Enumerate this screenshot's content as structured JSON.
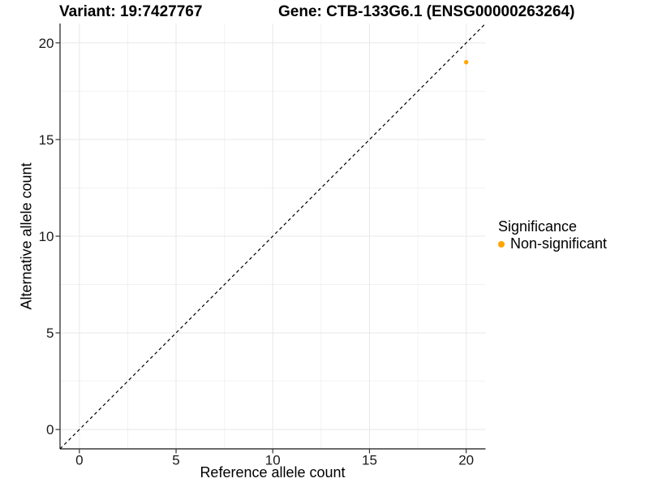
{
  "header": {
    "variant_title": "Variant: 19:7427767",
    "gene_title": "Gene: CTB-133G6.1 (ENSG00000263264)"
  },
  "chart_data": {
    "type": "scatter",
    "xlabel": "Reference allele count",
    "ylabel": "Alternative allele count",
    "xlim": [
      -1,
      21
    ],
    "ylim": [
      -1,
      21
    ],
    "x_ticks": [
      0,
      5,
      10,
      15,
      20
    ],
    "y_ticks": [
      0,
      5,
      10,
      15,
      20
    ],
    "grid": "major+minor",
    "points": [
      {
        "x": 20,
        "y": 19,
        "series": "Non-significant"
      }
    ],
    "identity_line": {
      "slope": 1,
      "intercept": 0,
      "style": "dashed",
      "color": "#000000"
    },
    "legend": {
      "title": "Significance",
      "position": "right",
      "entries": [
        {
          "label": "Non-significant",
          "color": "#FFA500"
        }
      ]
    },
    "colors": {
      "point": "#FFA500",
      "grid_major": "#E8E8E8",
      "grid_minor": "#F2F2F2",
      "axis_line": "#3c3c3c",
      "tick_mark": "#333333",
      "tick_text": "#1a1a1a"
    }
  }
}
